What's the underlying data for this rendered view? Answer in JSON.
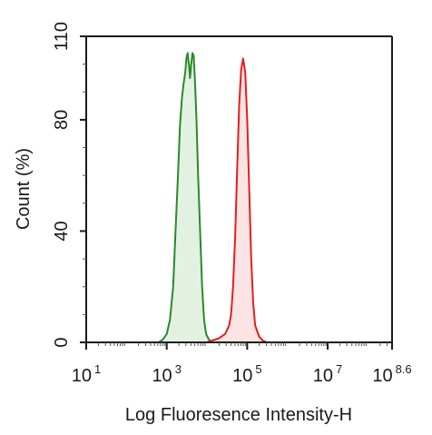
{
  "chart_data": {
    "type": "area",
    "title": "",
    "xlabel": "Log Fluoresence Intensity-H",
    "ylabel": "Count  (%)",
    "x_scale": "log10",
    "xlim": [
      1,
      8.6
    ],
    "ylim": [
      0,
      110
    ],
    "grid": false,
    "x_ticks": [
      {
        "base": "10",
        "exp": "1",
        "value": 1
      },
      {
        "base": "10",
        "exp": "3",
        "value": 3
      },
      {
        "base": "10",
        "exp": "5",
        "value": 5
      },
      {
        "base": "10",
        "exp": "7",
        "value": 7
      },
      {
        "base": "10",
        "exp": "8.6",
        "value": 8.6
      }
    ],
    "y_ticks": [
      {
        "label": "0",
        "value": 0
      },
      {
        "label": "40",
        "value": 40
      },
      {
        "label": "80",
        "value": 80
      },
      {
        "label": "110",
        "value": 110
      }
    ],
    "series": [
      {
        "color": "#2a8a2a",
        "fill": "#e3f1e3",
        "points": [
          [
            2.8,
            0
          ],
          [
            2.9,
            1
          ],
          [
            3.0,
            3
          ],
          [
            3.08,
            8
          ],
          [
            3.16,
            20
          ],
          [
            3.22,
            40
          ],
          [
            3.28,
            60
          ],
          [
            3.33,
            78
          ],
          [
            3.38,
            88
          ],
          [
            3.42,
            93
          ],
          [
            3.46,
            97
          ],
          [
            3.49,
            102
          ],
          [
            3.52,
            104
          ],
          [
            3.55,
            100
          ],
          [
            3.58,
            95
          ],
          [
            3.61,
            100
          ],
          [
            3.64,
            104
          ],
          [
            3.67,
            103
          ],
          [
            3.7,
            95
          ],
          [
            3.74,
            80
          ],
          [
            3.78,
            60
          ],
          [
            3.83,
            40
          ],
          [
            3.88,
            20
          ],
          [
            3.93,
            8
          ],
          [
            3.98,
            3
          ],
          [
            4.05,
            1
          ],
          [
            4.15,
            0
          ]
        ]
      },
      {
        "color": "#e02020",
        "fill": "#fde4e4",
        "points": [
          [
            4.0,
            0
          ],
          [
            4.1,
            0.5
          ],
          [
            4.3,
            1.5
          ],
          [
            4.45,
            3
          ],
          [
            4.55,
            6
          ],
          [
            4.6,
            10
          ],
          [
            4.65,
            20
          ],
          [
            4.7,
            38
          ],
          [
            4.75,
            62
          ],
          [
            4.8,
            85
          ],
          [
            4.85,
            98
          ],
          [
            4.9,
            102
          ],
          [
            4.95,
            97
          ],
          [
            5.0,
            80
          ],
          [
            5.05,
            55
          ],
          [
            5.1,
            30
          ],
          [
            5.15,
            14
          ],
          [
            5.2,
            6
          ],
          [
            5.3,
            2
          ],
          [
            5.4,
            0.5
          ],
          [
            5.5,
            0
          ]
        ]
      }
    ]
  }
}
